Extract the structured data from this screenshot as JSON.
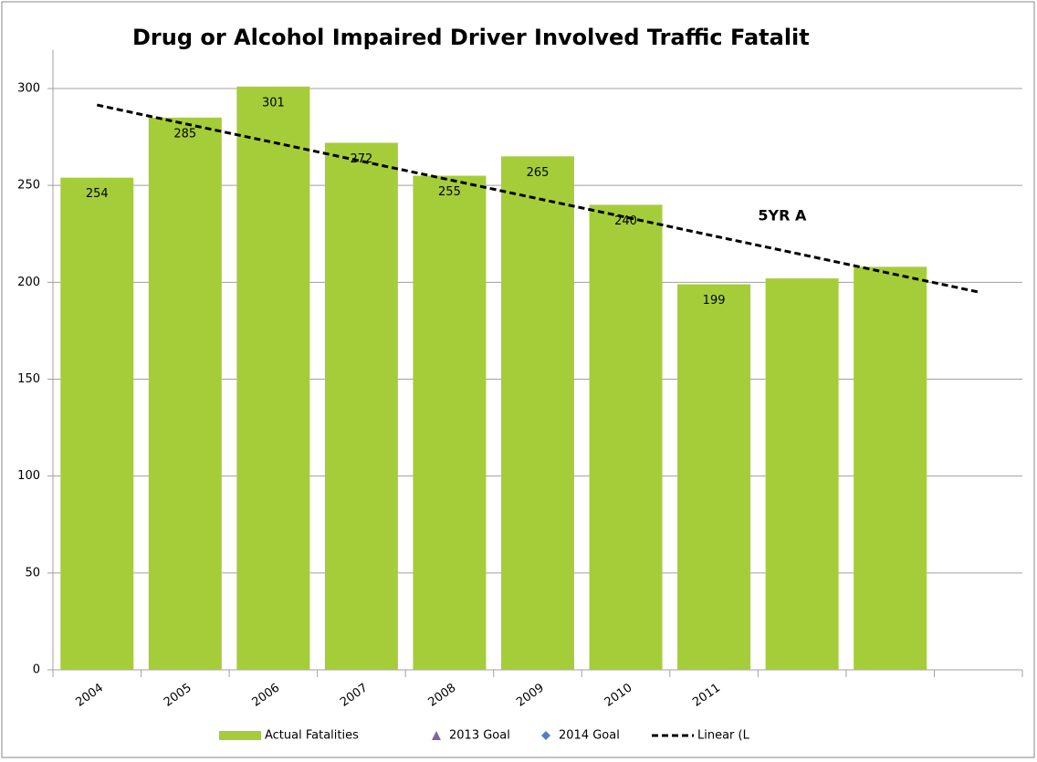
{
  "chart_data": {
    "type": "bar",
    "title": "Drug or Alcohol Impaired Driver Involved Traffic Fatalit",
    "categories": [
      "2004",
      "2005",
      "2006",
      "2007",
      "2008",
      "2009",
      "2010",
      "2011",
      null,
      null,
      null
    ],
    "series": [
      {
        "name": "Actual Fatalities",
        "color": "#a5cd39",
        "marker": "bar",
        "values": [
          254,
          285,
          301,
          272,
          255,
          265,
          240,
          199,
          202,
          208,
          null
        ],
        "value_labels": [
          "254",
          "285",
          "301",
          "272",
          "255",
          "265",
          "240",
          "199",
          null,
          null,
          null
        ]
      },
      {
        "name": "2013 Goal",
        "color": "#8064a2",
        "marker": "triangle",
        "values": [
          null,
          null,
          null,
          null,
          null,
          null,
          null,
          null,
          null,
          null,
          null
        ]
      },
      {
        "name": "2014 Goal",
        "color": "#4f81bd",
        "marker": "diamond",
        "values": [
          null,
          null,
          null,
          null,
          null,
          null,
          null,
          null,
          null,
          null,
          null
        ]
      },
      {
        "name": "Linear (L",
        "color": "#000000",
        "marker": "dashed-line",
        "values": [
          291.5,
          281.8,
          272.2,
          262.5,
          252.9,
          243.2,
          233.6,
          223.9,
          214.3,
          204.6,
          195
        ]
      }
    ],
    "annotations": [
      {
        "text": "5YR A",
        "color": "#e8572a",
        "category_index": 7.5,
        "y": 234
      }
    ],
    "ylim": [
      0,
      320
    ],
    "yticks": [
      0,
      50,
      100,
      150,
      200,
      250,
      300
    ],
    "grid": true,
    "legend": "bottom"
  }
}
